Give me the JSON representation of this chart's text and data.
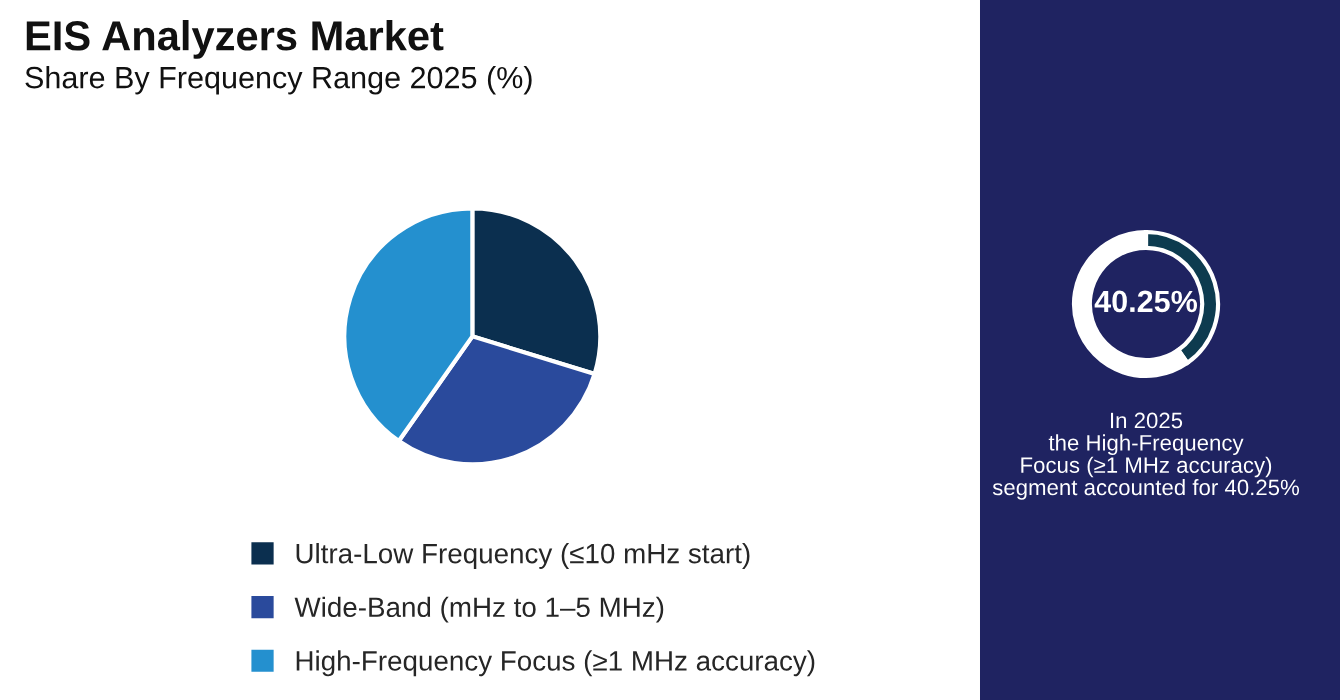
{
  "chart_data": [
    {
      "type": "pie",
      "title": "EIS Analyzers Market",
      "subtitle": "Share By Frequency Range 2025 (%)",
      "categories": [
        "Ultra-Low Frequency (≤10 mHz start)",
        "Wide-Band (mHz to 1–5 MHz)",
        "High-Frequency Focus (≥1 MHz accuracy)"
      ],
      "values": [
        29.75,
        30.0,
        40.25
      ],
      "colors": [
        "#0b2f4f",
        "#2a4a9c",
        "#2490cf"
      ],
      "legend": "bottom"
    },
    {
      "type": "donut",
      "categories": [
        null,
        null
      ],
      "values": [
        40.25,
        59.75
      ],
      "colors": [
        "#0d3b4f",
        "#ffffff"
      ],
      "annotations": [
        "40.25%",
        "In 2025\nthe High-Frequency\nFocus (≥1 MHz accuracy)\nsegment accounted for 40.25%"
      ]
    }
  ]
}
